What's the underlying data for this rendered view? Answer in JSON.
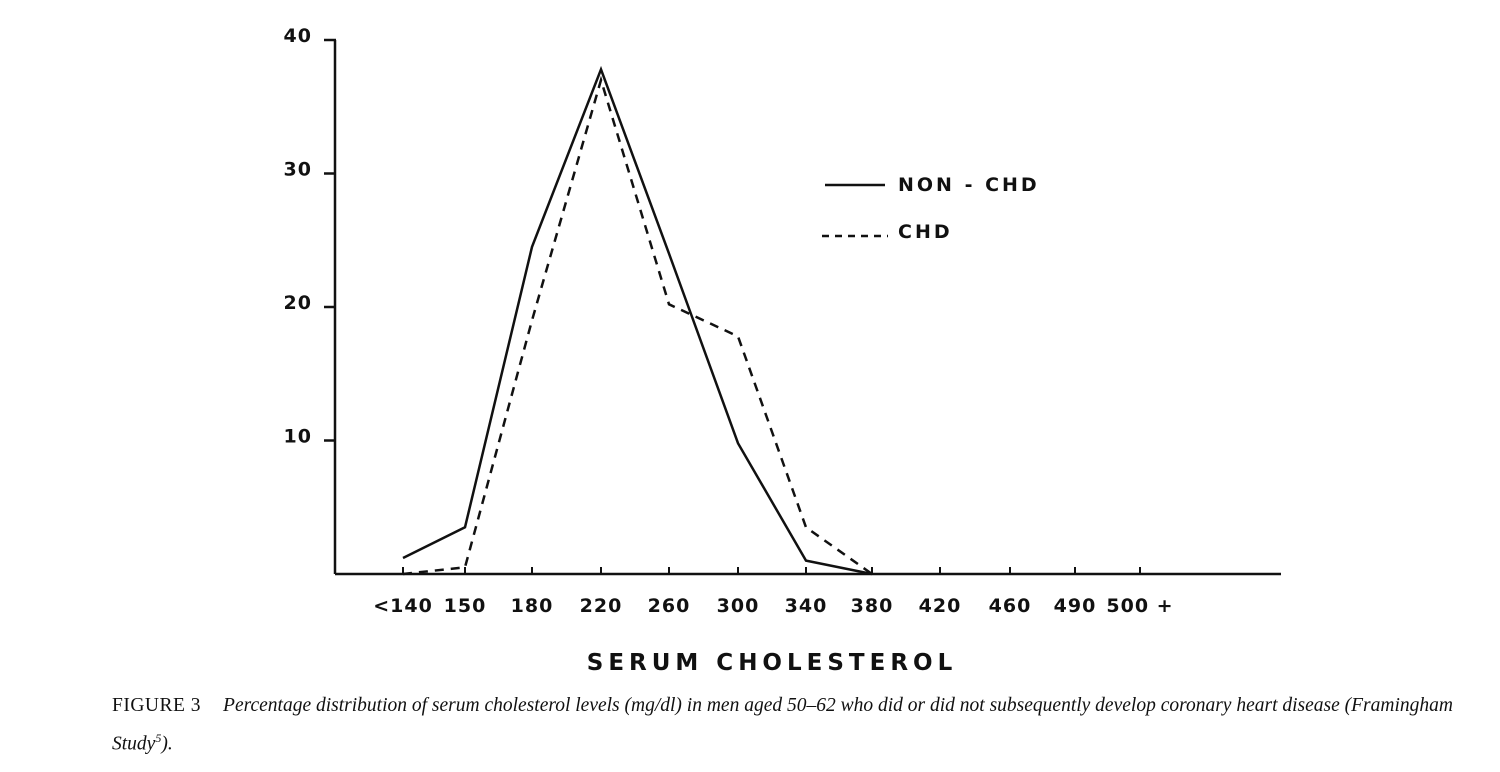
{
  "chart_data": {
    "type": "line",
    "categories": [
      "<140",
      "150",
      "180",
      "220",
      "260",
      "300",
      "340",
      "380",
      "420",
      "460",
      "490",
      "500 +"
    ],
    "y_ticks": [
      "10",
      "20",
      "30",
      "40"
    ],
    "ylim": [
      0,
      40
    ],
    "xlabel": "SERUM CHOLESTEROL",
    "ylabel": "",
    "grid": false,
    "legend_position": "top-right",
    "series": [
      {
        "name": "NON - CHD",
        "style": "solid",
        "values": [
          1.2,
          3.5,
          24.5,
          37.8,
          24.0,
          9.8,
          1.0,
          0.0,
          0.0,
          0.0,
          0.0,
          0.0
        ]
      },
      {
        "name": "CHD",
        "style": "dashed",
        "values": [
          0.0,
          0.5,
          19.0,
          37.0,
          20.2,
          17.8,
          3.5,
          0.0,
          0.0,
          0.0,
          0.0,
          0.0
        ]
      }
    ]
  },
  "caption": {
    "label": "FIGURE 3",
    "text": "Percentage distribution of serum cholesterol levels (mg/dl) in men aged 50–62 who did or did not subsequently develop coronary heart disease (Framingham Study",
    "superscript": "5",
    "end": ")."
  }
}
